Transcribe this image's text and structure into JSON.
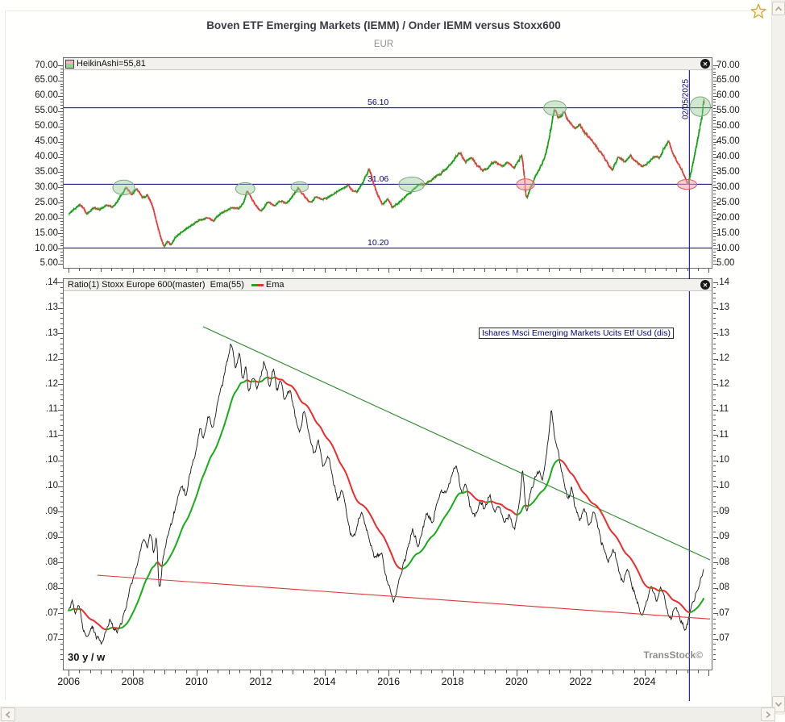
{
  "app": {
    "title": "Boven ETF Emerging Markets (IEMM) / Onder IEMM versus Stoxx600",
    "currency_label": "EUR",
    "icons": {
      "favorite": "star-icon",
      "close": "close-icon",
      "scroll_left": "chevron-left-icon",
      "scroll_right": "chevron-right-icon",
      "scroll_up": "chevron-up-icon",
      "scroll_down": "chevron-down-icon"
    }
  },
  "colors": {
    "navy": "#00007f",
    "candle_up": "#0b9c0b",
    "candle_down": "#e23535",
    "ratio_line": "#161616",
    "ema_up": "#19ac19",
    "ema_down": "#ea2c2c",
    "trend_up_line": "#2c8a2c",
    "trend_down_line": "#e23535",
    "ellipse_green_fill": "rgba(151,203,151,0.45)",
    "ellipse_green_stroke": "#7fa87f",
    "ellipse_red_fill": "rgba(247,164,164,0.55)",
    "ellipse_red_stroke": "#dd5a5a",
    "title": "#3a3a45",
    "axis_text": "#1a1a1a",
    "tick": "#555555",
    "panel_border": "#6b6b6b"
  },
  "chart_data": [
    {
      "type": "candlestick",
      "title": "HeikinAshi=55,81",
      "last_value_label": "55,81",
      "unit": "EUR",
      "x_range": [
        2006.0,
        2025.88
      ],
      "y_axis": {
        "min": 5,
        "max": 70,
        "tick_step": 5,
        "minor_step": 1,
        "labels": [
          "70.00",
          "65.00",
          "60.00",
          "55.00",
          "50.00",
          "45.00",
          "40.00",
          "35.00",
          "30.00",
          "25.00",
          "20.00",
          "15.00",
          "10.00",
          "5.00"
        ]
      },
      "levels": [
        {
          "value": 56.1,
          "label": "56.10"
        },
        {
          "value": 31.06,
          "label": "31.06"
        },
        {
          "value": 10.2,
          "label": "10.20"
        }
      ],
      "date_marker": {
        "label": "02/05/2025",
        "x": 2025.4
      },
      "ellipses_green": [
        [
          2007.72,
          30.0,
          0.34,
          2.4
        ],
        [
          2011.52,
          29.6,
          0.3,
          2.0
        ],
        [
          2013.22,
          30.2,
          0.27,
          1.7
        ],
        [
          2016.72,
          31.0,
          0.4,
          2.4
        ],
        [
          2021.2,
          56.0,
          0.35,
          2.4
        ],
        [
          2025.74,
          56.5,
          0.32,
          3.2
        ]
      ],
      "ellipses_red": [
        [
          2020.28,
          31.0,
          0.28,
          1.8
        ],
        [
          2025.33,
          31.0,
          0.3,
          1.6
        ]
      ],
      "anchors": [
        [
          2006.0,
          21.5
        ],
        [
          2006.15,
          23.0
        ],
        [
          2006.35,
          24.6
        ],
        [
          2006.55,
          21.4
        ],
        [
          2006.75,
          23.3
        ],
        [
          2006.95,
          22.8
        ],
        [
          2007.15,
          24.2
        ],
        [
          2007.35,
          23.6
        ],
        [
          2007.5,
          25.5
        ],
        [
          2007.65,
          28.0
        ],
        [
          2007.78,
          30.3
        ],
        [
          2007.95,
          27.4
        ],
        [
          2008.1,
          29.6
        ],
        [
          2008.3,
          26.4
        ],
        [
          2008.45,
          27.6
        ],
        [
          2008.6,
          23.8
        ],
        [
          2008.75,
          17.5
        ],
        [
          2008.87,
          13.0
        ],
        [
          2008.97,
          10.3
        ],
        [
          2009.07,
          12.6
        ],
        [
          2009.18,
          11.0
        ],
        [
          2009.3,
          13.6
        ],
        [
          2009.5,
          15.4
        ],
        [
          2009.7,
          16.8
        ],
        [
          2009.9,
          18.2
        ],
        [
          2010.1,
          19.4
        ],
        [
          2010.3,
          20.2
        ],
        [
          2010.5,
          19.0
        ],
        [
          2010.7,
          21.4
        ],
        [
          2010.9,
          22.4
        ],
        [
          2011.1,
          23.4
        ],
        [
          2011.3,
          23.0
        ],
        [
          2011.45,
          25.2
        ],
        [
          2011.55,
          29.4
        ],
        [
          2011.7,
          26.2
        ],
        [
          2011.85,
          23.6
        ],
        [
          2012.0,
          22.3
        ],
        [
          2012.2,
          25.4
        ],
        [
          2012.4,
          23.7
        ],
        [
          2012.6,
          25.7
        ],
        [
          2012.8,
          24.9
        ],
        [
          2013.0,
          27.4
        ],
        [
          2013.15,
          29.7
        ],
        [
          2013.35,
          26.9
        ],
        [
          2013.55,
          25.1
        ],
        [
          2013.7,
          27.0
        ],
        [
          2013.9,
          25.9
        ],
        [
          2014.1,
          26.9
        ],
        [
          2014.3,
          28.1
        ],
        [
          2014.5,
          29.4
        ],
        [
          2014.7,
          30.9
        ],
        [
          2014.85,
          29.0
        ],
        [
          2015.0,
          28.4
        ],
        [
          2015.15,
          31.4
        ],
        [
          2015.3,
          34.8
        ],
        [
          2015.38,
          36.6
        ],
        [
          2015.5,
          31.5
        ],
        [
          2015.65,
          27.0
        ],
        [
          2015.8,
          24.3
        ],
        [
          2015.95,
          26.4
        ],
        [
          2016.1,
          23.4
        ],
        [
          2016.25,
          24.6
        ],
        [
          2016.45,
          26.6
        ],
        [
          2016.65,
          28.4
        ],
        [
          2016.85,
          30.4
        ],
        [
          2017.05,
          30.9
        ],
        [
          2017.3,
          32.4
        ],
        [
          2017.6,
          34.4
        ],
        [
          2017.9,
          37.4
        ],
        [
          2018.1,
          40.4
        ],
        [
          2018.2,
          41.6
        ],
        [
          2018.4,
          38.4
        ],
        [
          2018.55,
          39.9
        ],
        [
          2018.75,
          37.1
        ],
        [
          2018.95,
          35.4
        ],
        [
          2019.15,
          37.4
        ],
        [
          2019.3,
          38.9
        ],
        [
          2019.5,
          36.9
        ],
        [
          2019.7,
          38.4
        ],
        [
          2019.9,
          36.4
        ],
        [
          2020.05,
          39.4
        ],
        [
          2020.15,
          40.9
        ],
        [
          2020.22,
          33.0
        ],
        [
          2020.28,
          25.4
        ],
        [
          2020.4,
          29.9
        ],
        [
          2020.55,
          33.4
        ],
        [
          2020.7,
          36.4
        ],
        [
          2020.85,
          39.9
        ],
        [
          2021.0,
          46.4
        ],
        [
          2021.1,
          52.4
        ],
        [
          2021.17,
          56.4
        ],
        [
          2021.3,
          52.6
        ],
        [
          2021.45,
          54.6
        ],
        [
          2021.6,
          51.9
        ],
        [
          2021.8,
          48.9
        ],
        [
          2021.95,
          50.6
        ],
        [
          2022.15,
          47.4
        ],
        [
          2022.35,
          44.9
        ],
        [
          2022.55,
          42.1
        ],
        [
          2022.75,
          39.4
        ],
        [
          2022.95,
          35.6
        ],
        [
          2023.15,
          40.1
        ],
        [
          2023.35,
          38.6
        ],
        [
          2023.55,
          40.4
        ],
        [
          2023.75,
          37.9
        ],
        [
          2023.95,
          36.9
        ],
        [
          2024.15,
          38.9
        ],
        [
          2024.3,
          40.4
        ],
        [
          2024.45,
          39.4
        ],
        [
          2024.6,
          43.4
        ],
        [
          2024.72,
          45.4
        ],
        [
          2024.85,
          41.4
        ],
        [
          2025.0,
          38.4
        ],
        [
          2025.12,
          36.4
        ],
        [
          2025.25,
          32.9
        ],
        [
          2025.33,
          30.8
        ],
        [
          2025.42,
          34.5
        ],
        [
          2025.5,
          38.9
        ],
        [
          2025.58,
          43.0
        ],
        [
          2025.66,
          47.0
        ],
        [
          2025.73,
          51.0
        ],
        [
          2025.79,
          55.0
        ],
        [
          2025.83,
          61.0
        ],
        [
          2025.86,
          58.0
        ],
        [
          2025.88,
          55.8
        ]
      ]
    },
    {
      "type": "line",
      "legend": "Ratio(1) Stoxx Europe 600(master)  Ema(55) ",
      "ema_label": "Ema",
      "ema_period": 55,
      "instrument_label": "Ishares Msci Emerging Markets Ucits Etf Usd (dis)",
      "range_label": "30 y / w",
      "watermark": "TransStock©",
      "x_range": [
        2006.0,
        2025.85
      ],
      "y_axis": {
        "min": 0.0655,
        "max": 0.14,
        "tick_step": 0.005,
        "minor_step": 0.001,
        "labels": [
          ".14",
          ".13",
          ".13",
          ".12",
          ".12",
          ".11",
          ".11",
          ".10",
          ".10",
          ".09",
          ".09",
          ".08",
          ".08",
          ".07",
          ".07"
        ]
      },
      "x_axis": {
        "years": [
          2006,
          2008,
          2010,
          2012,
          2014,
          2016,
          2018,
          2020,
          2022,
          2024
        ],
        "labels": [
          "2006",
          "2008",
          "2010",
          "2012",
          "2014",
          "2016",
          "2018",
          "2020",
          "2022",
          "2024"
        ]
      },
      "trendlines": [
        {
          "name": "descending-resistance",
          "color": "green",
          "from": [
            2010.2,
            0.1313
          ],
          "to": [
            2026.05,
            0.0855
          ]
        },
        {
          "name": "descending-support",
          "color": "red",
          "from": [
            2006.9,
            0.0825
          ],
          "to": [
            2026.05,
            0.0739
          ]
        }
      ],
      "anchors": [
        [
          2006.0,
          0.0755
        ],
        [
          2006.1,
          0.0785
        ],
        [
          2006.2,
          0.074
        ],
        [
          2006.3,
          0.0775
        ],
        [
          2006.42,
          0.072
        ],
        [
          2006.55,
          0.07
        ],
        [
          2006.7,
          0.0725
        ],
        [
          2006.85,
          0.0705
        ],
        [
          2007.0,
          0.069
        ],
        [
          2007.15,
          0.0715
        ],
        [
          2007.3,
          0.0735
        ],
        [
          2007.45,
          0.071
        ],
        [
          2007.6,
          0.073
        ],
        [
          2007.75,
          0.0755
        ],
        [
          2007.9,
          0.08
        ],
        [
          2008.05,
          0.0825
        ],
        [
          2008.2,
          0.087
        ],
        [
          2008.35,
          0.0905
        ],
        [
          2008.45,
          0.0875
        ],
        [
          2008.55,
          0.0915
        ],
        [
          2008.65,
          0.086
        ],
        [
          2008.73,
          0.091
        ],
        [
          2008.82,
          0.0775
        ],
        [
          2008.92,
          0.086
        ],
        [
          2009.05,
          0.089
        ],
        [
          2009.2,
          0.093
        ],
        [
          2009.35,
          0.0965
        ],
        [
          2009.5,
          0.1
        ],
        [
          2009.65,
          0.098
        ],
        [
          2009.8,
          0.103
        ],
        [
          2009.95,
          0.107
        ],
        [
          2010.1,
          0.112
        ],
        [
          2010.2,
          0.109
        ],
        [
          2010.35,
          0.1145
        ],
        [
          2010.5,
          0.111
        ],
        [
          2010.65,
          0.1165
        ],
        [
          2010.8,
          0.1205
        ],
        [
          2010.95,
          0.125
        ],
        [
          2011.08,
          0.1287
        ],
        [
          2011.2,
          0.123
        ],
        [
          2011.33,
          0.1262
        ],
        [
          2011.42,
          0.12
        ],
        [
          2011.52,
          0.1242
        ],
        [
          2011.6,
          0.118
        ],
        [
          2011.75,
          0.1222
        ],
        [
          2011.9,
          0.1192
        ],
        [
          2012.0,
          0.1222
        ],
        [
          2012.1,
          0.1247
        ],
        [
          2012.25,
          0.1192
        ],
        [
          2012.4,
          0.1232
        ],
        [
          2012.5,
          0.118
        ],
        [
          2012.6,
          0.1212
        ],
        [
          2012.75,
          0.1162
        ],
        [
          2012.9,
          0.1192
        ],
        [
          2013.05,
          0.1142
        ],
        [
          2013.2,
          0.1102
        ],
        [
          2013.35,
          0.1152
        ],
        [
          2013.5,
          0.1102
        ],
        [
          2013.65,
          0.1062
        ],
        [
          2013.8,
          0.1092
        ],
        [
          2013.95,
          0.1032
        ],
        [
          2014.1,
          0.1062
        ],
        [
          2014.25,
          0.1012
        ],
        [
          2014.4,
          0.0972
        ],
        [
          2014.55,
          0.0992
        ],
        [
          2014.7,
          0.0932
        ],
        [
          2014.85,
          0.0892
        ],
        [
          2015.0,
          0.0922
        ],
        [
          2015.15,
          0.0952
        ],
        [
          2015.3,
          0.0912
        ],
        [
          2015.45,
          0.0882
        ],
        [
          2015.6,
          0.0852
        ],
        [
          2015.75,
          0.0872
        ],
        [
          2015.9,
          0.0822
        ],
        [
          2016.05,
          0.0792
        ],
        [
          2016.12,
          0.0768
        ],
        [
          2016.3,
          0.0812
        ],
        [
          2016.45,
          0.0848
        ],
        [
          2016.6,
          0.0882
        ],
        [
          2016.75,
          0.0915
        ],
        [
          2016.9,
          0.088
        ],
        [
          2017.05,
          0.092
        ],
        [
          2017.2,
          0.0948
        ],
        [
          2017.35,
          0.0928
        ],
        [
          2017.5,
          0.0968
        ],
        [
          2017.65,
          0.0992
        ],
        [
          2017.8,
          0.0985
        ],
        [
          2017.95,
          0.102
        ],
        [
          2018.1,
          0.1045
        ],
        [
          2018.25,
          0.0985
        ],
        [
          2018.4,
          0.1005
        ],
        [
          2018.55,
          0.0955
        ],
        [
          2018.7,
          0.0935
        ],
        [
          2018.85,
          0.0975
        ],
        [
          2019.0,
          0.0955
        ],
        [
          2019.15,
          0.0985
        ],
        [
          2019.3,
          0.0945
        ],
        [
          2019.45,
          0.0965
        ],
        [
          2019.6,
          0.0925
        ],
        [
          2019.75,
          0.0945
        ],
        [
          2019.9,
          0.0912
        ],
        [
          2020.05,
          0.0955
        ],
        [
          2020.18,
          0.104
        ],
        [
          2020.28,
          0.094
        ],
        [
          2020.4,
          0.0985
        ],
        [
          2020.55,
          0.1015
        ],
        [
          2020.7,
          0.1035
        ],
        [
          2020.8,
          0.1005
        ],
        [
          2020.9,
          0.1055
        ],
        [
          2021.0,
          0.1105
        ],
        [
          2021.08,
          0.116
        ],
        [
          2021.15,
          0.11
        ],
        [
          2021.3,
          0.106
        ],
        [
          2021.45,
          0.101
        ],
        [
          2021.6,
          0.097
        ],
        [
          2021.7,
          0.1
        ],
        [
          2021.8,
          0.096
        ],
        [
          2021.95,
          0.093
        ],
        [
          2022.1,
          0.096
        ],
        [
          2022.25,
          0.092
        ],
        [
          2022.4,
          0.095
        ],
        [
          2022.55,
          0.091
        ],
        [
          2022.7,
          0.0875
        ],
        [
          2022.85,
          0.085
        ],
        [
          2023.0,
          0.088
        ],
        [
          2023.15,
          0.084
        ],
        [
          2023.3,
          0.0812
        ],
        [
          2023.45,
          0.0842
        ],
        [
          2023.6,
          0.0805
        ],
        [
          2023.75,
          0.0772
        ],
        [
          2023.9,
          0.0742
        ],
        [
          2024.05,
          0.0775
        ],
        [
          2024.2,
          0.0805
        ],
        [
          2024.35,
          0.0772
        ],
        [
          2024.5,
          0.0802
        ],
        [
          2024.65,
          0.0765
        ],
        [
          2024.8,
          0.0738
        ],
        [
          2024.95,
          0.0768
        ],
        [
          2025.1,
          0.0738
        ],
        [
          2025.25,
          0.0718
        ],
        [
          2025.4,
          0.0752
        ],
        [
          2025.55,
          0.0782
        ],
        [
          2025.7,
          0.0812
        ],
        [
          2025.85,
          0.0848
        ]
      ]
    }
  ]
}
